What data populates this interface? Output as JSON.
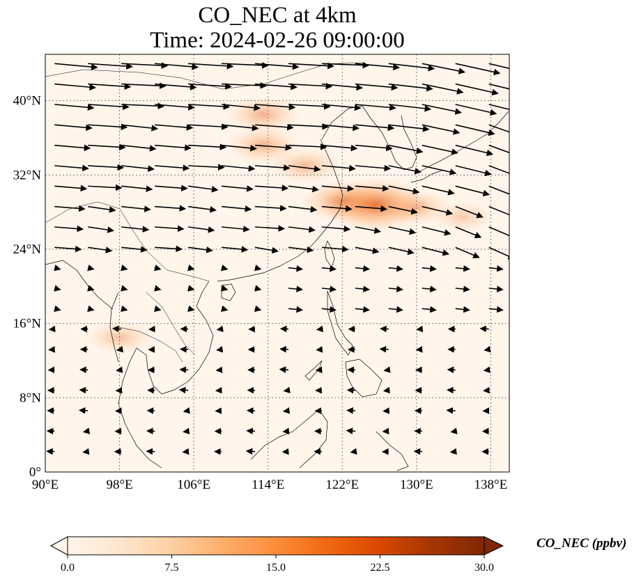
{
  "title": {
    "line1": "CO_NEC at 4km",
    "line2": "Time: 2024-02-26 09:00:00"
  },
  "map": {
    "extent": {
      "lon_min": 90,
      "lon_max": 140,
      "lat_min": 0,
      "lat_max": 45
    },
    "x_ticks": [
      {
        "lon": 90,
        "label": "90°E"
      },
      {
        "lon": 98,
        "label": "98°E"
      },
      {
        "lon": 106,
        "label": "106°E"
      },
      {
        "lon": 114,
        "label": "114°E"
      },
      {
        "lon": 122,
        "label": "122°E"
      },
      {
        "lon": 130,
        "label": "130°E"
      },
      {
        "lon": 138,
        "label": "138°E"
      }
    ],
    "y_ticks": [
      {
        "lat": 0,
        "label": "0°"
      },
      {
        "lat": 8,
        "label": "8°N"
      },
      {
        "lat": 16,
        "label": "16°N"
      },
      {
        "lat": 24,
        "label": "24°N"
      },
      {
        "lat": 32,
        "label": "32°N"
      },
      {
        "lat": 40,
        "label": "40°N"
      }
    ],
    "gridlines": true,
    "wind_field": "quiver arrows, strong westerlies north of ~22°N, weaker easterlies to the south",
    "plume_regions": [
      {
        "lon": 125.5,
        "lat": 28.8,
        "level": 0.85
      },
      {
        "lon": 122.0,
        "lat": 29.2,
        "level": 0.55
      },
      {
        "lon": 113.5,
        "lat": 38.5,
        "level": 0.45
      },
      {
        "lon": 113.5,
        "lat": 35.2,
        "level": 0.45
      },
      {
        "lon": 118.0,
        "lat": 33.0,
        "level": 0.4
      },
      {
        "lon": 130.0,
        "lat": 28.5,
        "level": 0.4
      },
      {
        "lon": 135.0,
        "lat": 27.5,
        "level": 0.3
      },
      {
        "lon": 98.0,
        "lat": 14.5,
        "level": 0.35
      }
    ]
  },
  "colorbar": {
    "title": "CO_NEC (ppbv)",
    "min": 0.0,
    "max": 30.0,
    "ticks": [
      "0.0",
      "7.5",
      "15.0",
      "22.5",
      "30.0"
    ],
    "colormap": [
      "#fff5eb",
      "#fee6ce",
      "#fdd0a2",
      "#fdae6b",
      "#fd8d3c",
      "#f16913",
      "#d94801",
      "#a63603",
      "#7f2704"
    ]
  }
}
